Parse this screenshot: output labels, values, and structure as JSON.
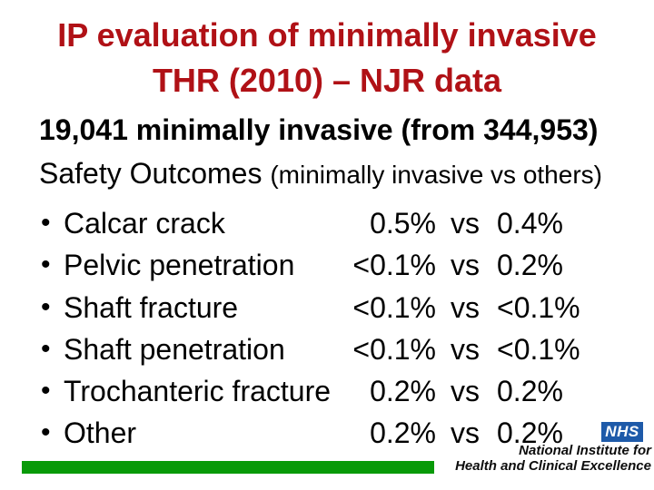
{
  "slide": {
    "title": {
      "line1": "IP evaluation of minimally invasive",
      "line2": "THR (2010) – NJR data"
    },
    "intro": {
      "line1": "19,041 minimally invasive (from 344,953)",
      "line2_main": "Safety Outcomes ",
      "line2_paren": "(minimally invasive vs others)"
    },
    "bullet_char": "•",
    "vs_label": "vs",
    "outcomes": [
      {
        "label": "Calcar crack",
        "mi": "0.5%",
        "others": "0.4%"
      },
      {
        "label": "Pelvic penetration",
        "mi": "<0.1%",
        "others": "0.2%"
      },
      {
        "label": "Shaft fracture",
        "mi": "<0.1%",
        "others": "<0.1%"
      },
      {
        "label": "Shaft penetration",
        "mi": "<0.1%",
        "others": "<0.1%"
      },
      {
        "label": "Trochanteric fracture",
        "mi": "0.2%",
        "others": "0.2%"
      },
      {
        "label": "Other",
        "mi": "0.2%",
        "others": "0.2%"
      }
    ],
    "footer": {
      "nhs_logo_text": "NHS",
      "org_line1": "National Institute for",
      "org_line2": "Health and Clinical Excellence"
    },
    "colors": {
      "title_red": "#b01116",
      "bar_green": "#089a08",
      "nhs_blue": "#1e5aa9"
    }
  }
}
